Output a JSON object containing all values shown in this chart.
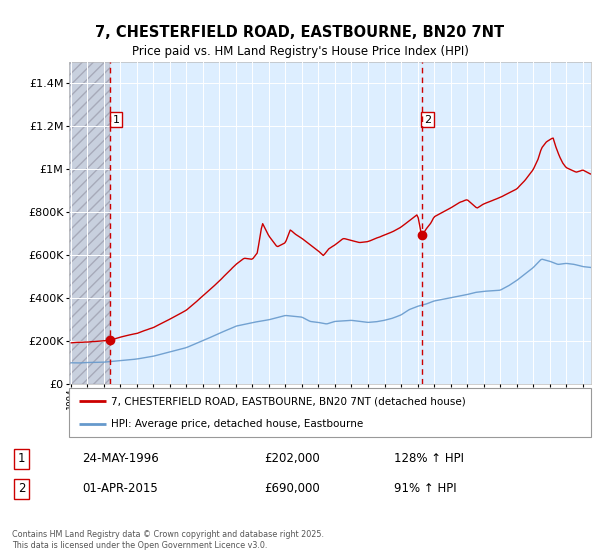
{
  "title_line1": "7, CHESTERFIELD ROAD, EASTBOURNE, BN20 7NT",
  "title_line2": "Price paid vs. HM Land Registry's House Price Index (HPI)",
  "legend_line1": "7, CHESTERFIELD ROAD, EASTBOURNE, BN20 7NT (detached house)",
  "legend_line2": "HPI: Average price, detached house, Eastbourne",
  "footnote": "Contains HM Land Registry data © Crown copyright and database right 2025.\nThis data is licensed under the Open Government Licence v3.0.",
  "transaction1_label": "1",
  "transaction1_date": "24-MAY-1996",
  "transaction1_price": "£202,000",
  "transaction1_hpi": "128% ↑ HPI",
  "transaction1_year": 1996.38,
  "transaction1_value": 202000,
  "transaction2_label": "2",
  "transaction2_date": "01-APR-2015",
  "transaction2_price": "£690,000",
  "transaction2_hpi": "91% ↑ HPI",
  "transaction2_year": 2015.25,
  "transaction2_value": 690000,
  "hpi_color": "#6699cc",
  "price_color": "#cc0000",
  "dashed_color": "#cc0000",
  "background_plot": "#ddeeff",
  "ylim_max": 1500000,
  "xlim_start": 1993.9,
  "xlim_end": 2025.5
}
